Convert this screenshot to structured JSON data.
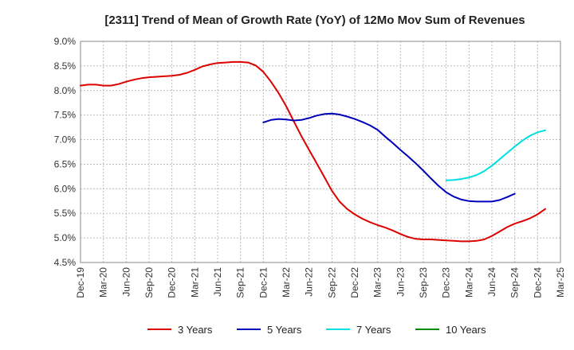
{
  "chart_data": {
    "type": "line",
    "title": "[2311]  Trend of Mean of Growth Rate (YoY) of 12Mo Mov Sum of Revenues",
    "xlabel": "",
    "ylabel": "",
    "ylim": [
      4.5,
      9.0
    ],
    "y_ticks": [
      "9.0%",
      "8.5%",
      "8.0%",
      "7.5%",
      "7.0%",
      "6.5%",
      "6.0%",
      "5.5%",
      "5.0%",
      "4.5%"
    ],
    "y_tick_values": [
      9.0,
      8.5,
      8.0,
      7.5,
      7.0,
      6.5,
      6.0,
      5.5,
      5.0,
      4.5
    ],
    "x_ticks": [
      "Dec-19",
      "Mar-20",
      "Jun-20",
      "Sep-20",
      "Dec-20",
      "Mar-21",
      "Jun-21",
      "Sep-21",
      "Dec-21",
      "Mar-22",
      "Jun-22",
      "Sep-22",
      "Dec-22",
      "Mar-23",
      "Jun-23",
      "Sep-23",
      "Dec-23",
      "Mar-24",
      "Jun-24",
      "Sep-24",
      "Dec-24",
      "Mar-25"
    ],
    "grid": true,
    "legend_position": "bottom",
    "series": [
      {
        "name": "3 Years",
        "color": "#dd0000",
        "points": [
          [
            0,
            8.1
          ],
          [
            1,
            8.12
          ],
          [
            2,
            8.12
          ],
          [
            3,
            8.1
          ],
          [
            4,
            8.1
          ],
          [
            5,
            8.13
          ],
          [
            6,
            8.18
          ],
          [
            7,
            8.22
          ],
          [
            8,
            8.25
          ],
          [
            9,
            8.27
          ],
          [
            10,
            8.28
          ],
          [
            11,
            8.29
          ],
          [
            12,
            8.3
          ],
          [
            13,
            8.32
          ],
          [
            14,
            8.36
          ],
          [
            15,
            8.42
          ],
          [
            16,
            8.49
          ],
          [
            17,
            8.53
          ],
          [
            18,
            8.56
          ],
          [
            19,
            8.57
          ],
          [
            20,
            8.58
          ],
          [
            21,
            8.58
          ],
          [
            22,
            8.57
          ],
          [
            23,
            8.51
          ],
          [
            24,
            8.38
          ],
          [
            25,
            8.18
          ],
          [
            26,
            7.95
          ],
          [
            27,
            7.68
          ],
          [
            28,
            7.37
          ],
          [
            29,
            7.07
          ],
          [
            30,
            6.79
          ],
          [
            31,
            6.52
          ],
          [
            32,
            6.24
          ],
          [
            33,
            5.96
          ],
          [
            34,
            5.74
          ],
          [
            35,
            5.59
          ],
          [
            36,
            5.48
          ],
          [
            37,
            5.39
          ],
          [
            38,
            5.32
          ],
          [
            39,
            5.26
          ],
          [
            40,
            5.21
          ],
          [
            41,
            5.15
          ],
          [
            42,
            5.08
          ],
          [
            43,
            5.02
          ],
          [
            44,
            4.98
          ],
          [
            45,
            4.97
          ],
          [
            46,
            4.97
          ],
          [
            47,
            4.96
          ],
          [
            48,
            4.95
          ],
          [
            49,
            4.94
          ],
          [
            50,
            4.93
          ],
          [
            51,
            4.93
          ],
          [
            52,
            4.94
          ],
          [
            53,
            4.97
          ],
          [
            54,
            5.04
          ],
          [
            55,
            5.13
          ],
          [
            56,
            5.22
          ],
          [
            57,
            5.29
          ],
          [
            58,
            5.34
          ],
          [
            59,
            5.4
          ],
          [
            60,
            5.48
          ],
          [
            61,
            5.59
          ]
        ]
      },
      {
        "name": "5 Years",
        "color": "#0000bb",
        "points": [
          [
            24,
            7.35
          ],
          [
            25,
            7.4
          ],
          [
            26,
            7.42
          ],
          [
            27,
            7.41
          ],
          [
            28,
            7.39
          ],
          [
            29,
            7.4
          ],
          [
            30,
            7.44
          ],
          [
            31,
            7.49
          ],
          [
            32,
            7.52
          ],
          [
            33,
            7.53
          ],
          [
            34,
            7.51
          ],
          [
            35,
            7.47
          ],
          [
            36,
            7.42
          ],
          [
            37,
            7.36
          ],
          [
            38,
            7.29
          ],
          [
            39,
            7.2
          ],
          [
            40,
            7.06
          ],
          [
            41,
            6.93
          ],
          [
            42,
            6.79
          ],
          [
            43,
            6.66
          ],
          [
            44,
            6.52
          ],
          [
            45,
            6.37
          ],
          [
            46,
            6.21
          ],
          [
            47,
            6.06
          ],
          [
            48,
            5.93
          ],
          [
            49,
            5.84
          ],
          [
            50,
            5.78
          ],
          [
            51,
            5.75
          ],
          [
            52,
            5.74
          ],
          [
            53,
            5.74
          ],
          [
            54,
            5.74
          ],
          [
            55,
            5.77
          ],
          [
            56,
            5.83
          ],
          [
            57,
            5.9
          ]
        ]
      },
      {
        "name": "7 Years",
        "color": "#00e0e0",
        "points": [
          [
            48,
            6.17
          ],
          [
            49,
            6.18
          ],
          [
            50,
            6.2
          ],
          [
            51,
            6.23
          ],
          [
            52,
            6.28
          ],
          [
            53,
            6.36
          ],
          [
            54,
            6.47
          ],
          [
            55,
            6.6
          ],
          [
            56,
            6.73
          ],
          [
            57,
            6.86
          ],
          [
            58,
            6.98
          ],
          [
            59,
            7.08
          ],
          [
            60,
            7.15
          ],
          [
            61,
            7.19
          ]
        ]
      },
      {
        "name": "10 Years",
        "color": "#008800",
        "points": []
      }
    ]
  }
}
